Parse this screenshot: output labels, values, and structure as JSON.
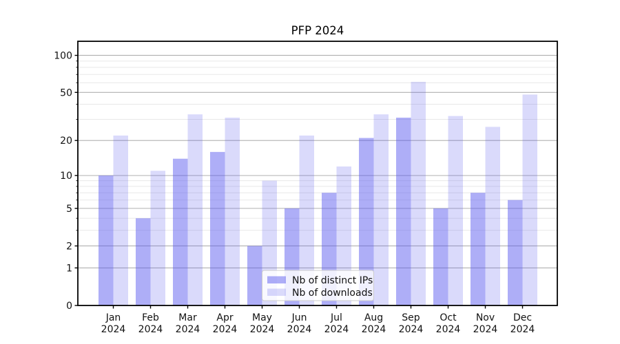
{
  "window": {
    "title": "PFP 2024"
  },
  "chart_data": {
    "type": "bar",
    "title": "PFP 2024",
    "categories": [
      "Jan",
      "Feb",
      "Mar",
      "Apr",
      "May",
      "Jun",
      "Jul",
      "Aug",
      "Sep",
      "Oct",
      "Nov",
      "Dec"
    ],
    "year_label": "2024",
    "series": [
      {
        "name": "Nb of distinct IPs",
        "color": "#5555ee",
        "alpha": 0.48,
        "values": [
          10,
          4,
          14,
          16,
          2,
          5,
          7,
          21,
          31,
          5,
          7,
          6
        ]
      },
      {
        "name": "Nb of downloads",
        "color": "#5555ee",
        "alpha": 0.22,
        "values": [
          22,
          11,
          33,
          31,
          9,
          22,
          12,
          33,
          61,
          32,
          26,
          48
        ]
      }
    ],
    "yscale": "log1p",
    "ylim": [
      0,
      130
    ],
    "yticks": [
      0,
      1,
      2,
      5,
      10,
      20,
      50,
      100
    ],
    "yticks_minor": [
      3,
      4,
      6,
      7,
      8,
      9,
      30,
      40,
      60,
      70,
      80,
      90
    ],
    "grid": true,
    "legend_position": "lower center",
    "colors": {
      "grid_major": "#b0b0b0",
      "grid_minor": "#e8e8e8",
      "spine": "#000000",
      "legend_border": "#cccccc",
      "legend_bg": "#ffffff"
    }
  }
}
